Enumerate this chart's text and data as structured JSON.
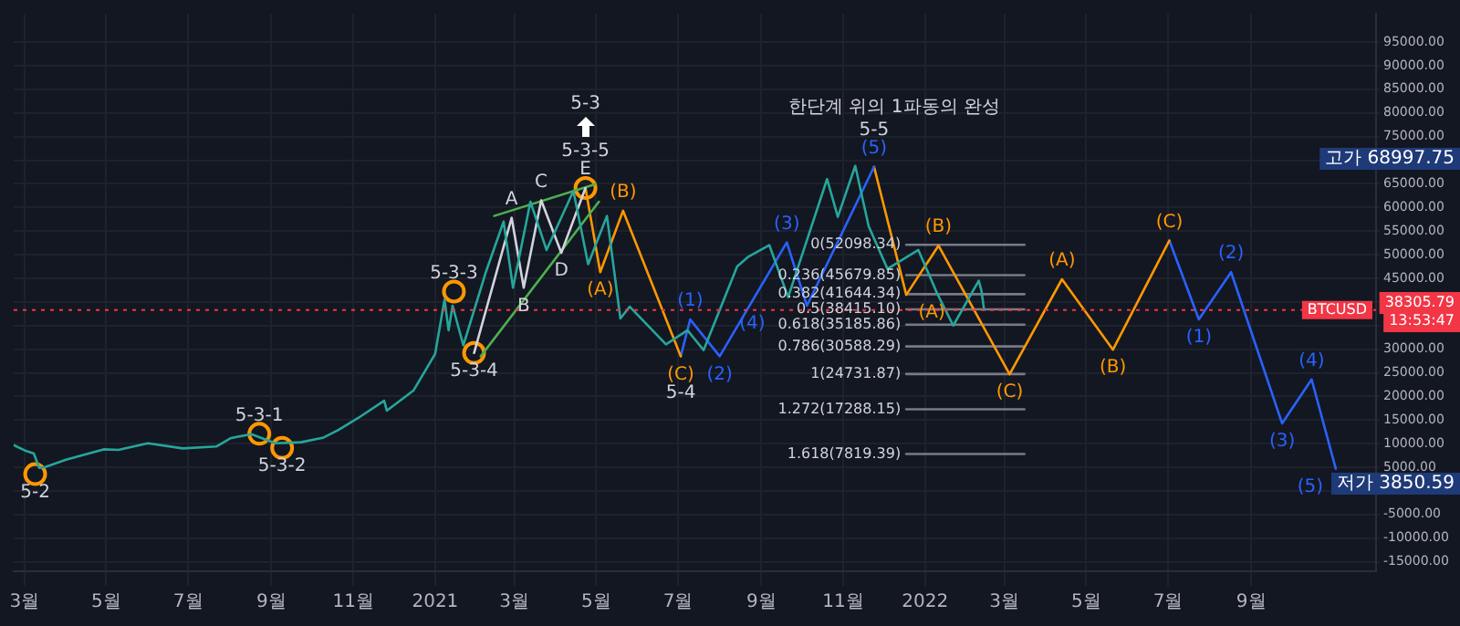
{
  "chart_data": {
    "type": "line",
    "marker": "none",
    "grid": true,
    "legend": false,
    "xlim": [
      "2020-02-22",
      "2022-12-03"
    ],
    "ylim": [
      -17000,
      101000
    ],
    "xticks": [
      {
        "value": "2020-03",
        "label": "3월"
      },
      {
        "value": "2020-05",
        "label": "5월"
      },
      {
        "value": "2020-07",
        "label": "7월"
      },
      {
        "value": "2020-09",
        "label": "9월"
      },
      {
        "value": "2020-11",
        "label": "11월"
      },
      {
        "value": "2021-01",
        "label": "2021"
      },
      {
        "value": "2021-03",
        "label": "3월"
      },
      {
        "value": "2021-05",
        "label": "5월"
      },
      {
        "value": "2021-07",
        "label": "7월"
      },
      {
        "value": "2021-09",
        "label": "9월"
      },
      {
        "value": "2021-11",
        "label": "11월"
      },
      {
        "value": "2022-01",
        "label": "2022"
      },
      {
        "value": "2022-03",
        "label": "3월"
      },
      {
        "value": "2022-05",
        "label": "5월"
      },
      {
        "value": "2022-07",
        "label": "7월"
      },
      {
        "value": "2022-09",
        "label": "9월"
      }
    ],
    "yticks": [
      {
        "value": 95000,
        "label": "95000.00"
      },
      {
        "value": 90000,
        "label": "90000.00"
      },
      {
        "value": 85000,
        "label": "85000.00"
      },
      {
        "value": 80000,
        "label": "80000.00"
      },
      {
        "value": 75000,
        "label": "75000.00"
      },
      {
        "value": 70000,
        "label": null
      },
      {
        "value": 65000,
        "label": "65000.00"
      },
      {
        "value": 60000,
        "label": "60000.00"
      },
      {
        "value": 55000,
        "label": "55000.00"
      },
      {
        "value": 50000,
        "label": "50000.00"
      },
      {
        "value": 45000,
        "label": "45000.00"
      },
      {
        "value": 40000,
        "label": null
      },
      {
        "value": 35000,
        "label": null
      },
      {
        "value": 30000,
        "label": "30000.00"
      },
      {
        "value": 25000,
        "label": "25000.00"
      },
      {
        "value": 20000,
        "label": "20000.00"
      },
      {
        "value": 15000,
        "label": "15000.00"
      },
      {
        "value": 10000,
        "label": "10000.00"
      },
      {
        "value": 5000,
        "label": "5000.00"
      },
      {
        "value": 0,
        "label": null
      },
      {
        "value": -5000,
        "label": "-5000.00"
      },
      {
        "value": -10000,
        "label": "-10000.00"
      },
      {
        "value": -15000,
        "label": "-15000.00"
      }
    ],
    "series": [
      {
        "color": "#26a69a",
        "x": [
          "2020-02-22",
          "2020-03-01",
          "2020-03-08",
          "2020-03-12",
          "2020-03-16",
          "2020-04-01",
          "2020-04-29",
          "2020-05-10",
          "2020-06-01",
          "2020-06-27",
          "2020-07-22",
          "2020-08-02",
          "2020-08-17",
          "2020-09-04",
          "2020-09-23",
          "2020-10-10",
          "2020-10-21",
          "2020-11-05",
          "2020-11-24",
          "2020-11-26",
          "2020-12-16",
          "2021-01-01",
          "2021-01-08",
          "2021-01-11",
          "2021-01-14",
          "2021-01-22",
          "2021-02-08",
          "2021-02-21",
          "2021-02-28",
          "2021-03-13",
          "2021-03-25",
          "2021-04-14",
          "2021-04-25",
          "2021-05-09",
          "2021-05-19",
          "2021-05-26",
          "2021-06-22",
          "2021-07-08",
          "2021-07-20",
          "2021-08-14",
          "2021-08-22",
          "2021-09-07",
          "2021-09-21",
          "2021-10-20",
          "2021-10-28",
          "2021-11-10",
          "2021-11-20",
          "2021-12-04",
          "2021-12-27",
          "2022-01-10",
          "2022-01-22",
          "2022-02-10",
          "2022-02-12",
          "2022-02-14"
        ],
        "values": [
          9700,
          8600,
          7900,
          4900,
          5000,
          6600,
          8800,
          8700,
          10100,
          9000,
          9400,
          11200,
          12000,
          10100,
          10300,
          11300,
          12900,
          15500,
          19100,
          17000,
          21300,
          29000,
          40500,
          34000,
          39200,
          30800,
          46500,
          57000,
          43000,
          61200,
          51000,
          63500,
          48000,
          58200,
          36500,
          39000,
          31000,
          34000,
          29800,
          47500,
          49500,
          52000,
          41000,
          66000,
          58000,
          68800,
          56000,
          47000,
          51000,
          41800,
          35000,
          44500,
          42400,
          38300
        ]
      },
      {
        "color": "#d1d4dc",
        "x": [
          "2021-01-30",
          "2021-02-27",
          "2021-03-08",
          "2021-03-21",
          "2021-04-05",
          "2021-04-23"
        ],
        "values": [
          29200,
          57800,
          43000,
          61500,
          50400,
          64100
        ]
      },
      {
        "color": "#4caf50",
        "x": [
          "2021-02-14",
          "2021-04-30"
        ],
        "values": [
          58200,
          64900
        ]
      },
      {
        "color": "#4caf50",
        "x": [
          "2021-02-04",
          "2021-05-03"
        ],
        "values": [
          28500,
          61200
        ]
      },
      {
        "color": "#ff9800",
        "x": [
          "2021-04-23",
          "2021-05-04",
          "2021-05-21",
          "2021-07-03"
        ],
        "values": [
          64100,
          46300,
          59300,
          28500
        ]
      },
      {
        "color": "#2962ff",
        "x": [
          "2021-07-03",
          "2021-07-10",
          "2021-08-01",
          "2021-09-20",
          "2021-10-05",
          "2021-11-24"
        ],
        "values": [
          28500,
          36300,
          28500,
          52600,
          39200,
          68600
        ]
      },
      {
        "color": "#ff9800",
        "x": [
          "2021-11-24",
          "2021-12-18",
          "2022-01-11",
          "2022-03-05",
          "2022-04-13",
          "2022-05-21",
          "2022-07-02"
        ],
        "values": [
          68600,
          41500,
          51900,
          24700,
          44800,
          29900,
          53000
        ]
      },
      {
        "color": "#2962ff",
        "x": [
          "2022-07-02",
          "2022-07-24",
          "2022-08-17",
          "2022-09-24",
          "2022-10-16",
          "2022-11-03"
        ],
        "values": [
          53000,
          36300,
          46300,
          14300,
          23600,
          4700
        ]
      },
      {
        "color": "#787b86",
        "x": [
          "2021-12-18",
          "2022-03-16"
        ],
        "values": [
          52098.34,
          52098.34
        ]
      },
      {
        "color": "#787b86",
        "x": [
          "2021-12-18",
          "2022-03-16"
        ],
        "values": [
          45679.85,
          45679.85
        ]
      },
      {
        "color": "#787b86",
        "x": [
          "2021-12-18",
          "2022-03-16"
        ],
        "values": [
          41644.34,
          41644.34
        ]
      },
      {
        "color": "#787b86",
        "x": [
          "2021-12-18",
          "2022-03-16"
        ],
        "values": [
          38415.1,
          38415.1
        ]
      },
      {
        "color": "#787b86",
        "x": [
          "2021-12-18",
          "2022-03-16"
        ],
        "values": [
          35185.86,
          35185.86
        ]
      },
      {
        "color": "#787b86",
        "x": [
          "2021-12-18",
          "2022-03-16"
        ],
        "values": [
          30588.29,
          30588.29
        ]
      },
      {
        "color": "#787b86",
        "x": [
          "2021-12-18",
          "2022-03-16"
        ],
        "values": [
          24731.87,
          24731.87
        ]
      },
      {
        "color": "#787b86",
        "x": [
          "2021-12-18",
          "2022-03-16"
        ],
        "values": [
          17288.15,
          17288.15
        ]
      },
      {
        "color": "#787b86",
        "x": [
          "2021-12-18",
          "2022-03-16"
        ],
        "values": [
          7819.39,
          7819.39
        ]
      },
      {
        "type": "scatter",
        "marker": "circle",
        "color": "#ff9800",
        "x": [
          "2020-03-09",
          "2020-08-23",
          "2020-09-09",
          "2021-01-15",
          "2021-01-30",
          "2021-04-23"
        ],
        "values": [
          3550,
          12100,
          9100,
          42200,
          29200,
          64100
        ]
      }
    ],
    "ref_lines": [
      {
        "axis": "y",
        "value": 38305.79,
        "label": "BTCUSD",
        "color": "#f23645",
        "line_style": "dotted"
      }
    ],
    "annotations": [
      "한단계 위의 1파동의 완성",
      "5-3",
      "고가 68997.75",
      "38305.79",
      "13:53:47",
      "저가 3850.59",
      {
        "text": "0(52098.34)",
        "x": "2021-12-18",
        "y": 52098.34
      },
      {
        "text": "0.236(45679.85)",
        "x": "2021-12-18",
        "y": 45679.85
      },
      {
        "text": "0.382(41644.34)",
        "x": "2021-12-18",
        "y": 41644.34
      },
      {
        "text": "0.5(38415.10)",
        "x": "2021-12-18",
        "y": 38415.1
      },
      {
        "text": "0.618(35185.86)",
        "x": "2021-12-18",
        "y": 35185.86
      },
      {
        "text": "0.786(30588.29)",
        "x": "2021-12-18",
        "y": 30588.29
      },
      {
        "text": "1(24731.87)",
        "x": "2021-12-18",
        "y": 24731.87
      },
      {
        "text": "1.272(17288.15)",
        "x": "2021-12-18",
        "y": 17288.15
      },
      {
        "text": "1.618(7819.39)",
        "x": "2021-12-18",
        "y": 7819.39
      },
      {
        "text": "5-2",
        "x": "2020-03-09",
        "y": 3550
      },
      {
        "text": "5-3-1",
        "x": "2020-08-23",
        "y": 12100
      },
      {
        "text": "5-3-2",
        "x": "2020-09-09",
        "y": 9100
      },
      {
        "text": "5-3-3",
        "x": "2021-01-15",
        "y": 42200
      },
      {
        "text": "5-3-4",
        "x": "2021-01-30",
        "y": 29200
      },
      {
        "text": "E",
        "x": "2021-04-23",
        "y": 64100
      },
      {
        "text": "5-3-5",
        "x": "2021-04-23",
        "y": 64100
      },
      {
        "text": "A",
        "x": "2021-02-27",
        "y": 57800
      },
      {
        "text": "B",
        "x": "2021-03-08",
        "y": 43000
      },
      {
        "text": "C",
        "x": "2021-03-21",
        "y": 61500
      },
      {
        "text": "D",
        "x": "2021-04-05",
        "y": 50400
      },
      {
        "text": "(A)",
        "x": "2021-05-04",
        "y": 46300
      },
      {
        "text": "(B)",
        "x": "2021-05-21",
        "y": 59300
      },
      {
        "text": "(C)",
        "x": "2021-07-03",
        "y": 28500
      },
      {
        "text": "5-4",
        "x": "2021-07-03",
        "y": 28500
      },
      {
        "text": "(1)",
        "x": "2021-07-10",
        "y": 36300
      },
      {
        "text": "(2)",
        "x": "2021-08-01",
        "y": 28500
      },
      {
        "text": "(3)",
        "x": "2021-09-20",
        "y": 52600
      },
      {
        "text": "(4)",
        "x": "2021-10-05",
        "y": 39200
      },
      {
        "text": "(5)",
        "x": "2021-11-24",
        "y": 68600
      },
      {
        "text": "5-5",
        "x": "2021-11-24",
        "y": 68600
      },
      {
        "text": "(A)",
        "x": "2021-12-18",
        "y": 41500
      },
      {
        "text": "(B)",
        "x": "2022-01-11",
        "y": 51900
      },
      {
        "text": "(C)",
        "x": "2022-03-05",
        "y": 24700
      },
      {
        "text": "(A)",
        "x": "2022-04-13",
        "y": 44800
      },
      {
        "text": "(B)",
        "x": "2022-05-21",
        "y": 29900
      },
      {
        "text": "(C)",
        "x": "2022-07-02",
        "y": 53000
      },
      {
        "text": "(1)",
        "x": "2022-07-24",
        "y": 36300
      },
      {
        "text": "(2)",
        "x": "2022-08-17",
        "y": 46300
      },
      {
        "text": "(3)",
        "x": "2022-09-24",
        "y": 14300
      },
      {
        "text": "(4)",
        "x": "2022-10-16",
        "y": 23600
      },
      {
        "text": "(5)",
        "x": "2022-11-03",
        "y": 4700
      }
    ]
  }
}
